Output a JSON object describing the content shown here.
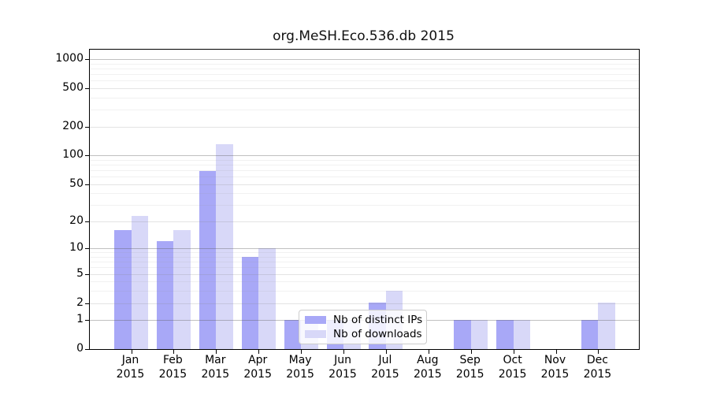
{
  "chart_data": {
    "type": "bar",
    "title": "org.MeSH.Eco.536.db 2015",
    "categories": [
      "Jan",
      "Feb",
      "Mar",
      "Apr",
      "May",
      "Jun",
      "Jul",
      "Aug",
      "Sep",
      "Oct",
      "Nov",
      "Dec"
    ],
    "category_year": "2015",
    "series": [
      {
        "name": "Nb of distinct IPs",
        "color": "#a8a8f7",
        "values": [
          16,
          12,
          68,
          8,
          1,
          1,
          2,
          0,
          1,
          1,
          0,
          1
        ]
      },
      {
        "name": "Nb of downloads",
        "color": "#d8d8f8",
        "values": [
          23,
          16,
          132,
          10,
          1,
          1,
          3,
          0,
          1,
          1,
          0,
          2
        ]
      }
    ],
    "yticks": [
      0,
      1,
      2,
      5,
      10,
      20,
      50,
      100,
      200,
      500,
      1000
    ],
    "yaxis_scale": "log1p",
    "ylim": [
      0,
      1200
    ],
    "grid": true,
    "legend_position": "lower-center"
  }
}
